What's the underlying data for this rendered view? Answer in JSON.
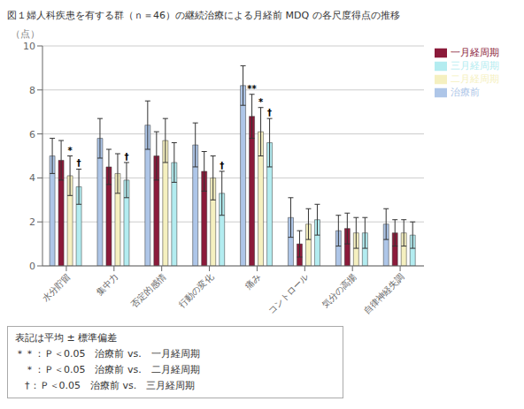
{
  "chart_data": {
    "type": "bar",
    "title": "図１婦人科疾患を有する群（ｎ＝46）の継続治療による月経前 MDQ の各尺度得点の推移",
    "ylabel": "（点）",
    "categories": [
      "水分貯留",
      "集中力",
      "否定的感情",
      "行動の変化",
      "痛み",
      "コントロール",
      "気分の高揚",
      "自律神経失調"
    ],
    "series": [
      {
        "name": "治療前",
        "color": "#aec6e8",
        "values": [
          5.0,
          5.8,
          6.4,
          5.5,
          8.2,
          2.2,
          1.6,
          1.9
        ],
        "errors": [
          0.8,
          0.9,
          1.1,
          1.0,
          0.9,
          0.9,
          0.7,
          0.7
        ]
      },
      {
        "name": "一月経周期",
        "color": "#8b1a3a",
        "values": [
          4.8,
          4.5,
          5.0,
          4.3,
          6.8,
          1.0,
          1.7,
          1.5
        ],
        "errors": [
          0.9,
          0.8,
          1.1,
          0.9,
          1.0,
          0.6,
          0.7,
          0.6
        ]
      },
      {
        "name": "二月経周期",
        "color": "#f5f0c0",
        "values": [
          4.1,
          4.2,
          5.7,
          4.0,
          6.1,
          1.9,
          1.5,
          1.5
        ],
        "errors": [
          0.9,
          0.9,
          1.0,
          1.0,
          1.1,
          0.7,
          0.7,
          0.6
        ]
      },
      {
        "name": "三月経周期",
        "color": "#b3ecf0",
        "values": [
          3.6,
          3.9,
          4.7,
          3.3,
          5.6,
          2.1,
          1.5,
          1.4
        ],
        "errors": [
          0.8,
          0.8,
          0.9,
          1.0,
          1.1,
          0.7,
          0.7,
          0.6
        ]
      }
    ],
    "ylim": [
      0,
      10
    ],
    "yticks": [
      0,
      2,
      4,
      6,
      8,
      10
    ],
    "grid": true,
    "legend": "right",
    "annotations": [
      {
        "category": "水分貯留",
        "series": "二月経周期",
        "text": "*"
      },
      {
        "category": "水分貯留",
        "series": "三月経周期",
        "text": "†"
      },
      {
        "category": "集中力",
        "series": "三月経周期",
        "text": "†"
      },
      {
        "category": "行動の変化",
        "series": "三月経周期",
        "text": "†"
      },
      {
        "category": "痛み",
        "series": "一月経周期",
        "text": "**"
      },
      {
        "category": "痛み",
        "series": "二月経周期",
        "text": "*"
      },
      {
        "category": "痛み",
        "series": "三月経周期",
        "text": "†"
      }
    ],
    "notes": [
      "表記は平均 ± 標準偏差",
      "＊＊：Ｐ＜0.05　治療前 vs.　一月経周期",
      "　＊：Ｐ＜0.05　治療前 vs.　二月経周期",
      "　†：Ｐ＜0.05　治療前 vs.　三月経周期"
    ]
  }
}
